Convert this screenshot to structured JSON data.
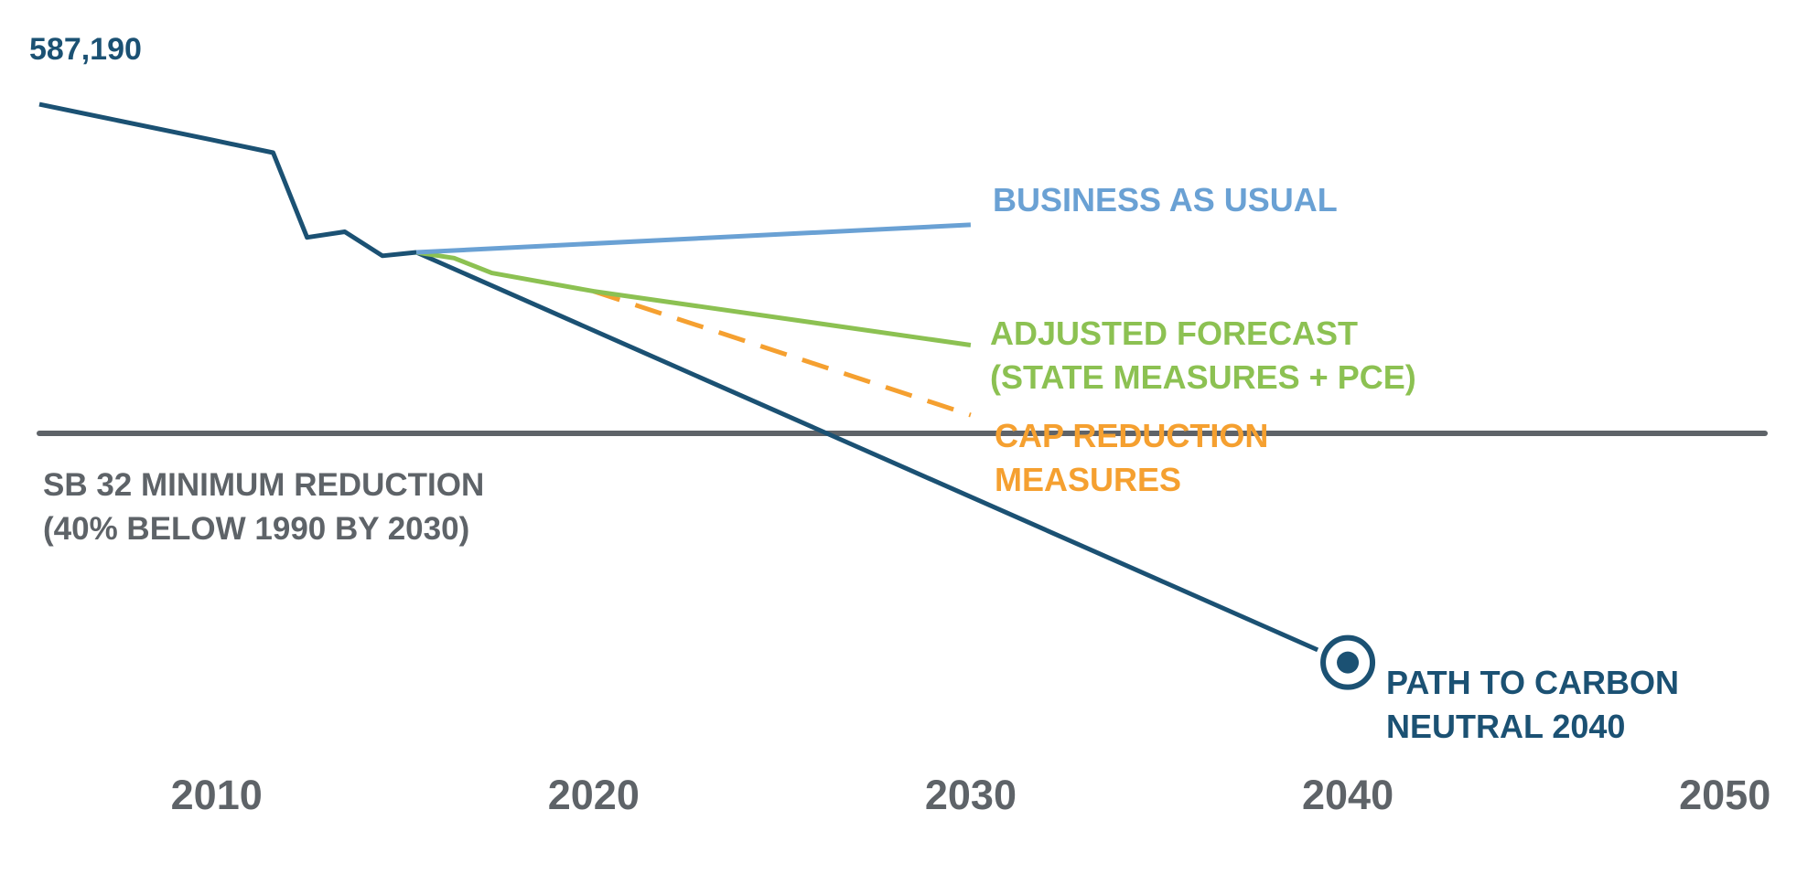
{
  "chart_data": {
    "type": "line",
    "title": "",
    "xlabel": "",
    "ylabel": "",
    "x_ticks": [
      2010,
      2020,
      2030,
      2040,
      2050
    ],
    "xlim": [
      2005.3,
      2051.5
    ],
    "ylim": [
      0,
      620000
    ],
    "grid": false,
    "legend": "none",
    "start_value_label": "587,190",
    "series": [
      {
        "label_lines": [],
        "color": "#1b5173",
        "dashed": false,
        "points": [
          [
            2005.3,
            587190
          ],
          [
            2009.9,
            556000
          ],
          [
            2011.5,
            545000
          ],
          [
            2012.4,
            471000
          ],
          [
            2013.4,
            476000
          ],
          [
            2014.4,
            455000
          ],
          [
            2015.3,
            458000
          ]
        ]
      },
      {
        "label_lines": [
          "BUSINESS AS USUAL"
        ],
        "color": "#6aa1d4",
        "dashed": false,
        "points": [
          [
            2015.3,
            458000
          ],
          [
            2030,
            482000
          ]
        ]
      },
      {
        "label_lines": [
          "ADJUSTED FORECAST",
          "(STATE MEASURES + PCE)"
        ],
        "color": "#8cc152",
        "dashed": false,
        "points": [
          [
            2015.3,
            458000
          ],
          [
            2016.3,
            453000
          ],
          [
            2017.3,
            440000
          ],
          [
            2020,
            424000
          ],
          [
            2030,
            377000
          ]
        ]
      },
      {
        "label_lines": [
          "CAP REDUCTION",
          "MEASURES"
        ],
        "color": "#f5a030",
        "dashed": true,
        "points": [
          [
            2020,
            424000
          ],
          [
            2030,
            316000
          ]
        ]
      },
      {
        "label_lines": [
          "PATH TO CARBON",
          "NEUTRAL 2040"
        ],
        "color": "#1b5173",
        "dashed": false,
        "points": [
          [
            2015.3,
            458000
          ],
          [
            2039.2,
            111000
          ]
        ]
      }
    ],
    "target_line": {
      "value": 300000,
      "color": "#5e6368",
      "label_lines": [
        "SB 32 MINIMUM REDUCTION",
        "(40% BELOW 1990 BY 2030)"
      ]
    },
    "end_marker": {
      "x": 2040,
      "y": 100000,
      "color": "#1b5173"
    }
  }
}
